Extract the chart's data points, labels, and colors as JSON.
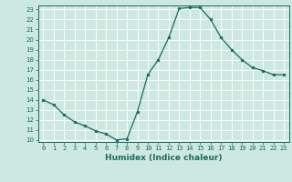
{
  "x": [
    0,
    1,
    2,
    3,
    4,
    5,
    6,
    7,
    8,
    9,
    10,
    11,
    12,
    13,
    14,
    15,
    16,
    17,
    18,
    19,
    20,
    21,
    22,
    23
  ],
  "y": [
    14.0,
    13.5,
    12.5,
    11.8,
    11.4,
    10.9,
    10.6,
    10.0,
    10.1,
    12.8,
    16.5,
    18.0,
    20.2,
    23.1,
    23.2,
    23.2,
    22.0,
    20.2,
    19.0,
    18.0,
    17.2,
    16.9,
    16.5,
    16.5
  ],
  "line_color": "#1a6b5c",
  "marker_color": "#1a6b5c",
  "bg_color": "#cce8e0",
  "grid_color": "#ffffff",
  "xlabel": "Humidex (Indice chaleur)",
  "ylim": [
    10,
    23
  ],
  "xlim": [
    0,
    23
  ],
  "yticks": [
    10,
    11,
    12,
    13,
    14,
    15,
    16,
    17,
    18,
    19,
    20,
    21,
    22,
    23
  ],
  "xticks": [
    0,
    1,
    2,
    3,
    4,
    5,
    6,
    7,
    8,
    9,
    10,
    11,
    12,
    13,
    14,
    15,
    16,
    17,
    18,
    19,
    20,
    21,
    22,
    23
  ],
  "tick_fontsize": 5.0,
  "xlabel_fontsize": 6.5
}
